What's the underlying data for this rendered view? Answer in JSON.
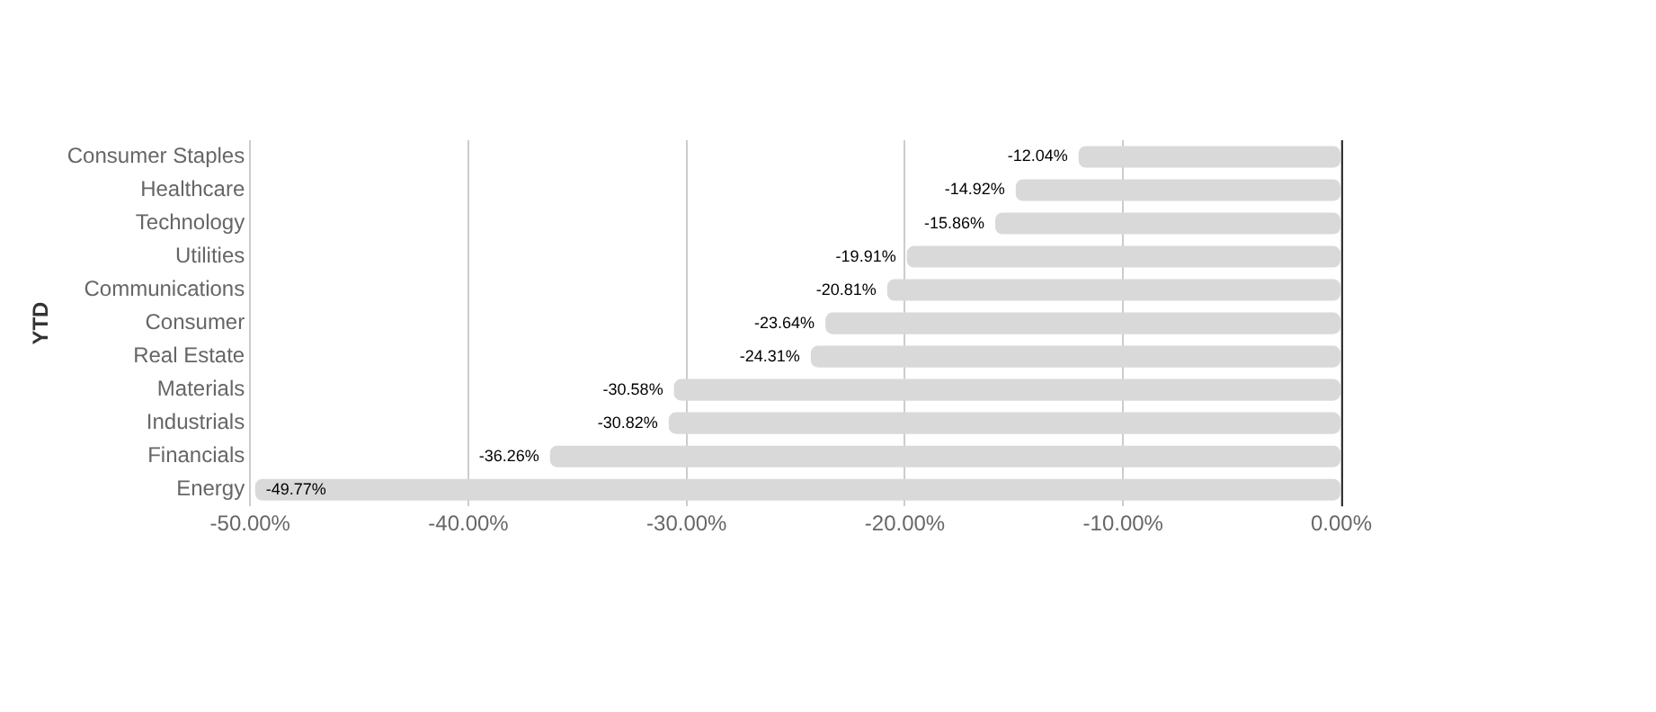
{
  "chart_data": {
    "type": "bar",
    "orientation": "horizontal",
    "ylabel": "YTD",
    "categories": [
      "Consumer Staples",
      "Healthcare",
      "Technology",
      "Utilities",
      "Communications",
      "Consumer",
      "Real Estate",
      "Materials",
      "Industrials",
      "Financials",
      "Energy"
    ],
    "values": [
      -12.04,
      -14.92,
      -15.86,
      -19.91,
      -20.81,
      -23.64,
      -24.31,
      -30.58,
      -30.82,
      -36.26,
      -49.77
    ],
    "value_labels": [
      "-12.04%",
      "-14.92%",
      "-15.86%",
      "-19.91%",
      "-20.81%",
      "-23.64%",
      "-24.31%",
      "-30.58%",
      "-30.82%",
      "-36.26%",
      "-49.77%"
    ],
    "color": "#d9d9d9",
    "xlim": [
      -50,
      0
    ],
    "xticks": [
      {
        "value": -50,
        "label": "-50.00%"
      },
      {
        "value": -40,
        "label": "-40.00%"
      },
      {
        "value": -30,
        "label": "-30.00%"
      },
      {
        "value": -20,
        "label": "-20.00%"
      },
      {
        "value": -10,
        "label": "-10.00%"
      },
      {
        "value": 0,
        "label": "0.00%"
      }
    ],
    "grid": "x",
    "legend": false
  }
}
